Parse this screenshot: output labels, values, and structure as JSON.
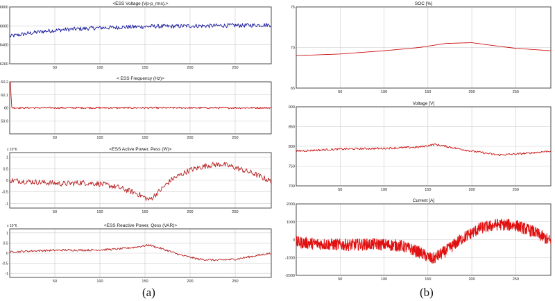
{
  "labels": {
    "left": "(a)",
    "right": "(b)"
  },
  "chart_data": [
    {
      "type": "line",
      "title": "<ESS Voltage (Vp-p_rms),>",
      "xticks": [
        50,
        100,
        150,
        200,
        250
      ],
      "xlim": [
        0,
        290
      ],
      "ylim": [
        6200,
        6800
      ],
      "yticks": [
        6200,
        6400,
        6600,
        6800
      ],
      "ytick_labels": [
        "6200",
        "6400",
        "6600",
        "6800"
      ],
      "color": "#1a1aa0",
      "series": [
        {
          "x": [
            0,
            20,
            40,
            60,
            80,
            100,
            120,
            140,
            160,
            180,
            200,
            220,
            240,
            260,
            280,
            290
          ],
          "y": [
            6490,
            6520,
            6545,
            6560,
            6570,
            6580,
            6585,
            6590,
            6595,
            6595,
            6600,
            6600,
            6605,
            6605,
            6610,
            6610
          ],
          "noise": 22
        }
      ]
    },
    {
      "type": "line",
      "title": "< ESS  Frequency (Hz)>",
      "xticks": [
        50,
        100,
        150,
        200,
        250
      ],
      "xlim": [
        0,
        290
      ],
      "ylim": [
        59.8,
        60.2
      ],
      "yticks": [
        59.8,
        59.9,
        60,
        60.1,
        60.2
      ],
      "ytick_labels": [
        "",
        "59.9",
        "60",
        "60.1",
        "60.2"
      ],
      "color": "#cc1111",
      "series": [
        {
          "x": [
            0,
            1.4,
            1.6,
            3,
            290
          ],
          "y": [
            60.2,
            60.2,
            60.02,
            60.0,
            60.0
          ],
          "noise": 0.007
        }
      ]
    },
    {
      "type": "line",
      "title": "<ESS Active Power, Pess (W)>",
      "exponent": "x 10^6",
      "xticks": [
        50,
        100,
        150,
        200,
        250
      ],
      "xlim": [
        0,
        290
      ],
      "ylim": [
        -1.2,
        1.2
      ],
      "yticks": [
        -1,
        -0.5,
        0,
        0.5,
        1
      ],
      "ytick_labels": [
        "-1",
        "-0.5",
        "0",
        "0.5",
        "1"
      ],
      "color": "#b82020",
      "series": [
        {
          "x": [
            0,
            20,
            40,
            60,
            80,
            100,
            120,
            140,
            155,
            165,
            180,
            200,
            220,
            235,
            250,
            270,
            290
          ],
          "y": [
            0.0,
            -0.05,
            -0.1,
            -0.15,
            -0.1,
            -0.15,
            -0.3,
            -0.55,
            -0.85,
            -0.5,
            0.05,
            0.45,
            0.65,
            0.7,
            0.55,
            0.3,
            -0.05
          ],
          "noise": 0.12
        }
      ]
    },
    {
      "type": "line",
      "title": "<ESS Reactive Power, Qess (VAR)>",
      "exponent": "x 10^6",
      "xticks": [
        50,
        100,
        150,
        200,
        250
      ],
      "xlim": [
        0,
        290
      ],
      "ylim": [
        -1.2,
        1.2
      ],
      "yticks": [
        -1,
        -0.5,
        0,
        0.5,
        1
      ],
      "ytick_labels": [
        "-1",
        "-0.5",
        "0",
        "0.5",
        "1"
      ],
      "color": "#b82020",
      "series": [
        {
          "x": [
            0,
            30,
            60,
            90,
            120,
            140,
            155,
            170,
            190,
            210,
            230,
            250,
            270,
            290
          ],
          "y": [
            0.05,
            0.12,
            0.15,
            0.15,
            0.2,
            0.3,
            0.4,
            0.2,
            -0.1,
            -0.3,
            -0.35,
            -0.3,
            -0.15,
            0.0
          ],
          "noise": 0.05
        }
      ]
    },
    {
      "type": "line",
      "title": "SOC [%]",
      "xticks": [
        50,
        100,
        150,
        200,
        250
      ],
      "xlim": [
        0,
        290
      ],
      "ylim": [
        65,
        75
      ],
      "yticks": [
        65,
        70,
        75
      ],
      "ytick_labels": [
        "65",
        "70",
        "75"
      ],
      "color": "#cc1111",
      "series": [
        {
          "x": [
            0,
            50,
            100,
            140,
            170,
            200,
            220,
            250,
            290
          ],
          "y": [
            69.0,
            69.2,
            69.6,
            70.0,
            70.5,
            70.6,
            70.3,
            69.9,
            69.6
          ],
          "noise": 0
        }
      ]
    },
    {
      "type": "line",
      "title": "Voltage [V]",
      "xticks": [
        50,
        100,
        150,
        200,
        250
      ],
      "xlim": [
        0,
        290
      ],
      "ylim": [
        700,
        900
      ],
      "yticks": [
        700,
        750,
        800,
        850,
        900
      ],
      "ytick_labels": [
        "700",
        "750",
        "800",
        "850",
        "900"
      ],
      "color": "#cc1111",
      "series": [
        {
          "x": [
            0,
            50,
            100,
            140,
            158,
            175,
            200,
            230,
            260,
            290
          ],
          "y": [
            788,
            793,
            795,
            798,
            805,
            798,
            788,
            778,
            782,
            788
          ],
          "noise": 2.5
        }
      ]
    },
    {
      "type": "line",
      "title": "Current [A]",
      "xticks": [
        50,
        100,
        150,
        200,
        250
      ],
      "xlim": [
        0,
        290
      ],
      "ylim": [
        -2000,
        2000
      ],
      "yticks": [
        -2000,
        -1000,
        0,
        1000,
        2000
      ],
      "ytick_labels": [
        "-2000",
        "-1000",
        "0",
        "1000",
        "2000"
      ],
      "color": "#e01010",
      "series": [
        {
          "x": [
            0,
            30,
            60,
            90,
            120,
            140,
            155,
            170,
            190,
            210,
            230,
            250,
            270,
            290
          ],
          "y": [
            -150,
            -250,
            -300,
            -250,
            -350,
            -700,
            -1100,
            -650,
            100,
            650,
            850,
            800,
            450,
            -100
          ],
          "noise": 330
        }
      ]
    }
  ]
}
